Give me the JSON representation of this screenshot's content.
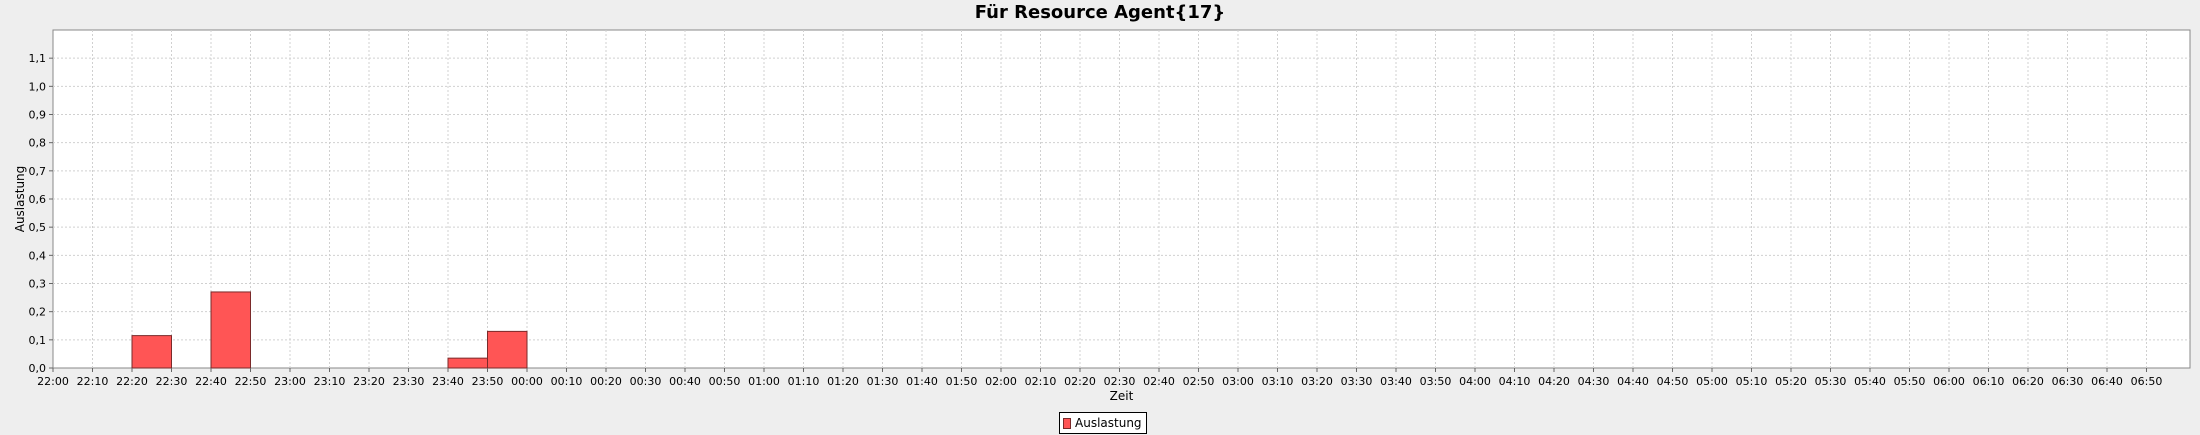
{
  "chart_data": {
    "type": "bar",
    "title": "Für Resource Agent{17}",
    "xlabel": "Zeit",
    "ylabel": "Auslastung",
    "ylim": [
      0,
      1.2
    ],
    "yticks": [
      "0,0",
      "0,1",
      "0,2",
      "0,3",
      "0,4",
      "0,5",
      "0,6",
      "0,7",
      "0,8",
      "0,9",
      "1,0",
      "1,1"
    ],
    "categories": [
      "22:00",
      "22:10",
      "22:20",
      "22:30",
      "22:40",
      "22:50",
      "23:00",
      "23:10",
      "23:20",
      "23:30",
      "23:40",
      "23:50",
      "00:00",
      "00:10",
      "00:20",
      "00:30",
      "00:40",
      "00:50",
      "01:00",
      "01:10",
      "01:20",
      "01:30",
      "01:40",
      "01:50",
      "02:00",
      "02:10",
      "02:20",
      "02:30",
      "02:40",
      "02:50",
      "03:00",
      "03:10",
      "03:20",
      "03:30",
      "03:40",
      "03:50",
      "04:00",
      "04:10",
      "04:20",
      "04:30",
      "04:40",
      "04:50",
      "05:00",
      "05:10",
      "05:20",
      "05:30",
      "05:40",
      "05:50",
      "06:00",
      "06:10",
      "06:20",
      "06:30",
      "06:40",
      "06:50"
    ],
    "series": [
      {
        "name": "Auslastung",
        "color": "#ff5555",
        "bars": [
          {
            "start": "22:20",
            "end": "22:30",
            "value": 0.115
          },
          {
            "start": "22:40",
            "end": "22:50",
            "value": 0.27
          },
          {
            "start": "23:40",
            "end": "23:50",
            "value": 0.035
          },
          {
            "start": "23:50",
            "end": "00:00",
            "value": 0.13
          }
        ]
      }
    ],
    "grid": true,
    "legend": "bottom-center"
  }
}
